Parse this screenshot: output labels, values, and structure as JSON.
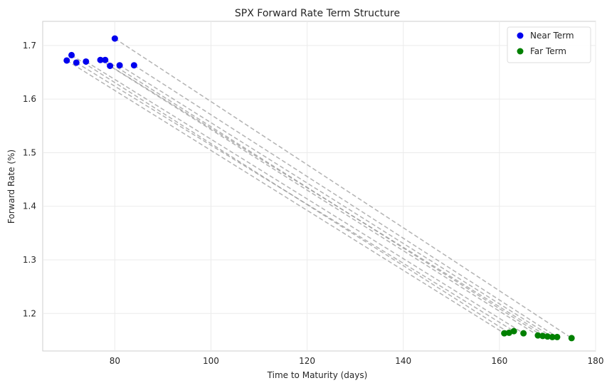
{
  "chart_data": {
    "type": "scatter",
    "title": "SPX Forward Rate Term Structure",
    "xlabel": "Time to Maturity (days)",
    "ylabel": "Forward Rate (%)",
    "xlim": [
      65,
      180
    ],
    "ylim": [
      1.13,
      1.745
    ],
    "xticks": [
      80,
      100,
      120,
      140,
      160,
      180
    ],
    "yticks": [
      1.2,
      1.3,
      1.4,
      1.5,
      1.6,
      1.7
    ],
    "grid": true,
    "legend_position": "top-right",
    "series": [
      {
        "name": "Near Term",
        "color": "#0000ee",
        "points": [
          {
            "x": 70,
            "y": 1.672
          },
          {
            "x": 71,
            "y": 1.682
          },
          {
            "x": 72,
            "y": 1.668
          },
          {
            "x": 74,
            "y": 1.67
          },
          {
            "x": 77,
            "y": 1.673
          },
          {
            "x": 78,
            "y": 1.673
          },
          {
            "x": 79,
            "y": 1.662
          },
          {
            "x": 80,
            "y": 1.713
          },
          {
            "x": 81,
            "y": 1.663
          },
          {
            "x": 84,
            "y": 1.663
          }
        ]
      },
      {
        "name": "Far Term",
        "color": "#008000",
        "points": [
          {
            "x": 161,
            "y": 1.163
          },
          {
            "x": 162,
            "y": 1.164
          },
          {
            "x": 163,
            "y": 1.167
          },
          {
            "x": 165,
            "y": 1.163
          },
          {
            "x": 168,
            "y": 1.159
          },
          {
            "x": 169,
            "y": 1.158
          },
          {
            "x": 170,
            "y": 1.157
          },
          {
            "x": 171,
            "y": 1.156
          },
          {
            "x": 172,
            "y": 1.156
          },
          {
            "x": 175,
            "y": 1.154
          }
        ]
      }
    ],
    "connectors": {
      "style": "dashed",
      "color": "#999999",
      "pairs": [
        {
          "from": {
            "x": 70,
            "y": 1.672
          },
          "to": {
            "x": 161,
            "y": 1.163
          }
        },
        {
          "from": {
            "x": 71,
            "y": 1.682
          },
          "to": {
            "x": 162,
            "y": 1.164
          }
        },
        {
          "from": {
            "x": 72,
            "y": 1.668
          },
          "to": {
            "x": 163,
            "y": 1.167
          }
        },
        {
          "from": {
            "x": 74,
            "y": 1.67
          },
          "to": {
            "x": 165,
            "y": 1.163
          }
        },
        {
          "from": {
            "x": 77,
            "y": 1.673
          },
          "to": {
            "x": 168,
            "y": 1.159
          }
        },
        {
          "from": {
            "x": 78,
            "y": 1.673
          },
          "to": {
            "x": 169,
            "y": 1.158
          }
        },
        {
          "from": {
            "x": 79,
            "y": 1.662
          },
          "to": {
            "x": 170,
            "y": 1.157
          }
        },
        {
          "from": {
            "x": 80,
            "y": 1.713
          },
          "to": {
            "x": 175,
            "y": 1.154
          }
        },
        {
          "from": {
            "x": 81,
            "y": 1.663
          },
          "to": {
            "x": 171,
            "y": 1.156
          }
        },
        {
          "from": {
            "x": 84,
            "y": 1.663
          },
          "to": {
            "x": 172,
            "y": 1.156
          }
        }
      ]
    }
  }
}
